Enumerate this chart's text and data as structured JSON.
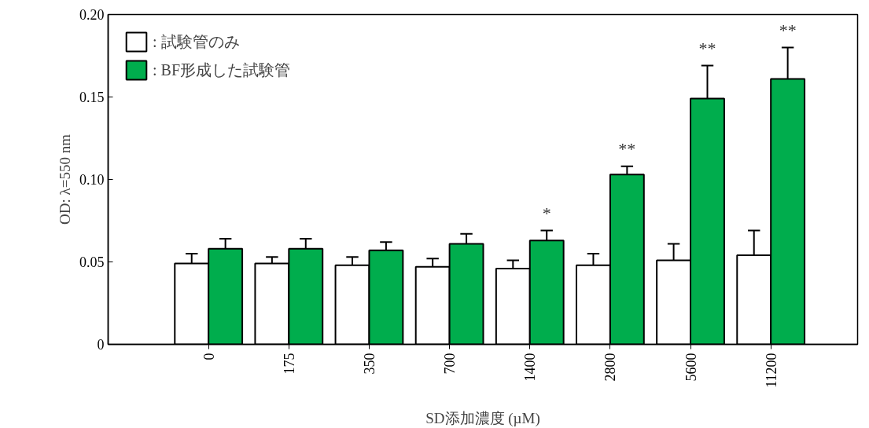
{
  "chart_data": {
    "type": "bar",
    "xlabel": "SD添加濃度 (µM)",
    "ylabel": "OD: λ=550 nm",
    "categories": [
      "0",
      "175",
      "350",
      "700",
      "1400",
      "2800",
      "5600",
      "11200"
    ],
    "series": [
      {
        "name": ": 試験管のみ",
        "color": "#ffffff",
        "values": [
          0.049,
          0.049,
          0.048,
          0.047,
          0.046,
          0.048,
          0.051,
          0.054
        ],
        "errors": [
          [
            0.049,
            0.055
          ],
          [
            0.049,
            0.053
          ],
          [
            0.048,
            0.053
          ],
          [
            0.047,
            0.052
          ],
          [
            0.046,
            0.051
          ],
          [
            0.048,
            0.055
          ],
          [
            0.051,
            0.061
          ],
          [
            0.054,
            0.069
          ]
        ]
      },
      {
        "name": ": BF形成した試験管",
        "color": "#00ad4d",
        "values": [
          0.058,
          0.058,
          0.057,
          0.061,
          0.063,
          0.103,
          0.149,
          0.161
        ],
        "errors": [
          [
            0.058,
            0.064
          ],
          [
            0.058,
            0.064
          ],
          [
            0.057,
            0.062
          ],
          [
            0.061,
            0.067
          ],
          [
            0.063,
            0.069
          ],
          [
            0.103,
            0.108
          ],
          [
            0.149,
            0.169
          ],
          [
            0.161,
            0.18
          ]
        ],
        "value_labels": [
          null,
          null,
          null,
          null,
          "*",
          "**",
          "**",
          "**"
        ]
      }
    ],
    "ylim": [
      0,
      0.2
    ],
    "yticks": [
      0,
      {
        "value": 0.05,
        "label": "0.05"
      },
      {
        "value": 0.1,
        "label": "0.10"
      },
      {
        "value": 0.15,
        "label": "0.15"
      },
      {
        "value": 0.2,
        "label": "0.20"
      }
    ],
    "legend": "top left",
    "grid": false
  }
}
